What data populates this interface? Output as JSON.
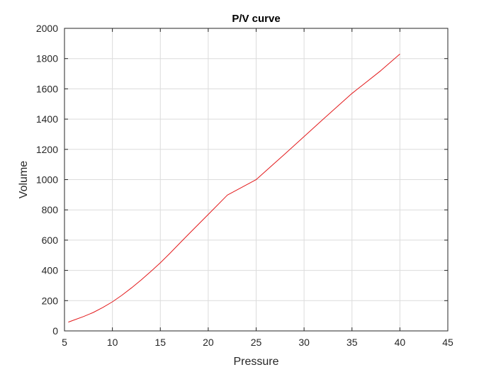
{
  "chart_data": {
    "type": "line",
    "title": "P/V curve",
    "xlabel": "Pressure",
    "ylabel": "Volume",
    "xlim": [
      5,
      45
    ],
    "ylim": [
      0,
      2000
    ],
    "xticks": [
      5,
      10,
      15,
      20,
      25,
      30,
      35,
      40,
      45
    ],
    "yticks": [
      0,
      200,
      400,
      600,
      800,
      1000,
      1200,
      1400,
      1600,
      1800,
      2000
    ],
    "grid": true,
    "line_color": "#e31a1c",
    "series": [
      {
        "x": [
          5.4,
          6,
          7,
          8,
          9,
          10,
          11,
          12,
          13,
          14,
          15,
          16,
          17,
          18,
          20,
          22,
          25,
          28,
          30,
          32,
          35,
          38,
          40
        ],
        "values": [
          58,
          72,
          95,
          122,
          155,
          192,
          236,
          285,
          337,
          392,
          450,
          513,
          578,
          642,
          770,
          898,
          1000,
          1170,
          1285,
          1400,
          1570,
          1720,
          1830
        ]
      }
    ]
  }
}
